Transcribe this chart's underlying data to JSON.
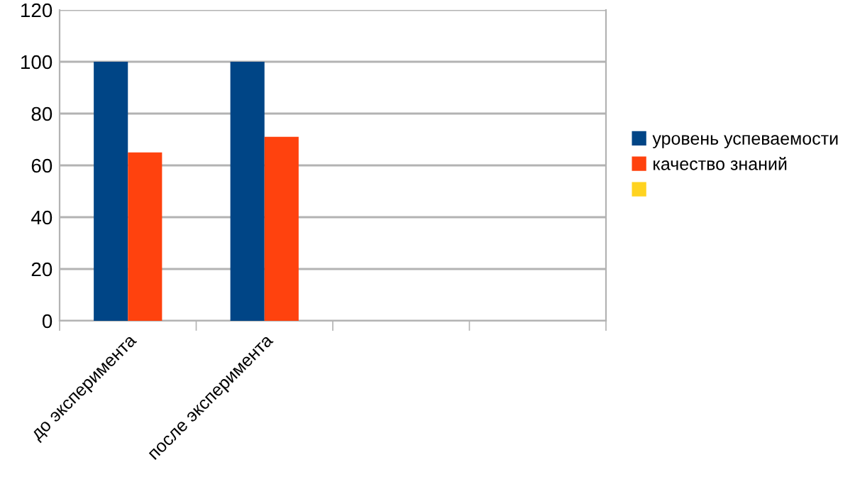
{
  "chart_data": {
    "type": "bar",
    "categories": [
      "до эксперимента",
      "после эксперимента",
      null,
      null
    ],
    "series": [
      {
        "name": "уровень успеваемости",
        "color": "#004586",
        "values": [
          100,
          100,
          null,
          null
        ]
      },
      {
        "name": "качество знаний",
        "color": "#ff420e",
        "values": [
          65,
          71,
          null,
          null
        ]
      },
      {
        "color": "#ffd320",
        "values": [
          null,
          null,
          null,
          null
        ]
      }
    ],
    "ylim": [
      0,
      120
    ],
    "yticks": [
      0,
      20,
      40,
      60,
      80,
      100,
      120
    ],
    "grid": "y",
    "legend": "right"
  }
}
